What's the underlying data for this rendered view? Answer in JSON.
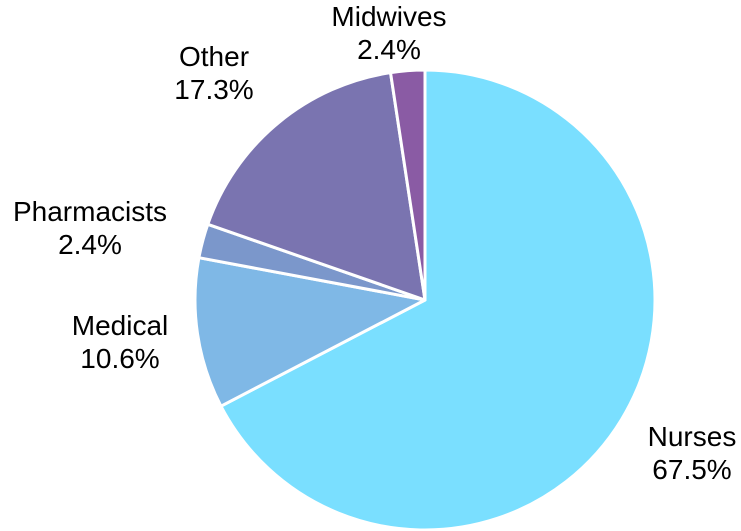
{
  "chart_data": {
    "type": "pie",
    "slices": [
      {
        "label": "Nurses",
        "value": 67.5,
        "value_text": "67.5%",
        "color": "#7ADFFF"
      },
      {
        "label": "Medical",
        "value": 10.6,
        "value_text": "10.6%",
        "color": "#7FB8E6"
      },
      {
        "label": "Pharmacists",
        "value": 2.4,
        "value_text": "2.4%",
        "color": "#7B97CB"
      },
      {
        "label": "Other",
        "value": 17.3,
        "value_text": "17.3%",
        "color": "#7A74B0"
      },
      {
        "label": "Midwives",
        "value": 2.4,
        "value_text": "2.4%",
        "color": "#8A5BA4"
      }
    ],
    "legend": "none",
    "direction": "clockwise"
  }
}
